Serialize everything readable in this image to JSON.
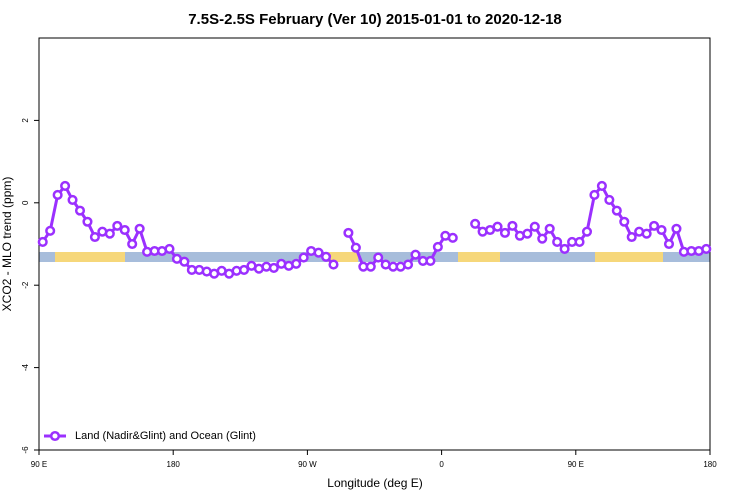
{
  "chart_data": {
    "type": "line",
    "title": "7.5S-2.5S February (Ver 10)   2015-01-01 to 2020-12-18",
    "xlabel": "Longitude (deg E)",
    "ylabel": "XCO2 - MLO trend (ppm)",
    "x": [
      92.5,
      97.5,
      102.5,
      107.5,
      112.5,
      117.5,
      122.5,
      127.5,
      132.5,
      137.5,
      142.5,
      147.5,
      152.5,
      157.5,
      162.5,
      167.5,
      172.5,
      177.5,
      182.5,
      187.5,
      192.5,
      197.5,
      202.5,
      207.5,
      212.5,
      217.5,
      222.5,
      227.5,
      232.5,
      237.5,
      242.5,
      247.5,
      252.5,
      257.5,
      262.5,
      267.5,
      272.5,
      277.5,
      282.5,
      287.5,
      292.5,
      297.5,
      302.5,
      307.5,
      312.5,
      317.5,
      322.5,
      327.5,
      332.5,
      337.5,
      342.5,
      347.5,
      352.5,
      357.5,
      362.5,
      367.5,
      372.5,
      377.5,
      382.5,
      387.5,
      392.5,
      397.5,
      402.5,
      407.5,
      412.5,
      417.5,
      422.5,
      427.5,
      432.5,
      437.5,
      442.5,
      447.5,
      452.5,
      457.5,
      462.5,
      467.5,
      472.5,
      477.5,
      482.5,
      487.5,
      492.5,
      497.5,
      502.5,
      507.5,
      512.5,
      517.5,
      522.5,
      527.5,
      532.5,
      537.5
    ],
    "series": [
      {
        "name": "Land (Nadir&Glint) and Ocean (Glint)",
        "color": "#9b30ff",
        "values": [
          -0.95,
          -0.68,
          0.19,
          0.41,
          0.07,
          -0.19,
          -0.46,
          -0.83,
          -0.7,
          -0.75,
          -0.56,
          -0.66,
          -1.0,
          -0.63,
          -1.19,
          -1.17,
          -1.17,
          -1.12,
          -1.36,
          -1.43,
          -1.63,
          -1.63,
          -1.67,
          -1.72,
          -1.65,
          -1.72,
          -1.65,
          -1.63,
          -1.53,
          -1.6,
          -1.55,
          -1.58,
          -1.48,
          -1.53,
          -1.48,
          -1.33,
          -1.17,
          -1.21,
          -1.31,
          -1.5,
          null,
          -0.73,
          -1.09,
          -1.55,
          -1.55,
          -1.33,
          -1.5,
          -1.55,
          -1.55,
          -1.5,
          -1.26,
          -1.41,
          -1.41,
          -1.07,
          -0.8,
          -0.85,
          null,
          null,
          -0.51,
          -0.7,
          -0.66,
          -0.58,
          -0.73,
          -0.56,
          -0.8,
          -0.75,
          -0.58,
          -0.87,
          -0.63,
          -0.95,
          -1.12,
          -0.95,
          -0.95,
          -0.7,
          0.19,
          0.41,
          0.07,
          -0.19,
          -0.46,
          -0.83,
          -0.7,
          -0.75,
          -0.56,
          -0.66,
          -1.0,
          -0.63,
          -1.19,
          -1.17,
          -1.17,
          -1.12
        ]
      }
    ],
    "xlim": [
      90,
      540
    ],
    "xticks": [
      {
        "value": 90,
        "label": "90 E"
      },
      180,
      {
        "value": 270,
        "label": "90 W"
      },
      {
        "value": 360,
        "label": "0"
      },
      {
        "value": 450,
        "label": "90 E"
      },
      {
        "value": 540,
        "label": "180"
      }
    ],
    "ylim": [
      -6,
      4
    ],
    "yticks": [
      2,
      0,
      -2,
      -4,
      -6
    ],
    "legend": "lower left"
  }
}
